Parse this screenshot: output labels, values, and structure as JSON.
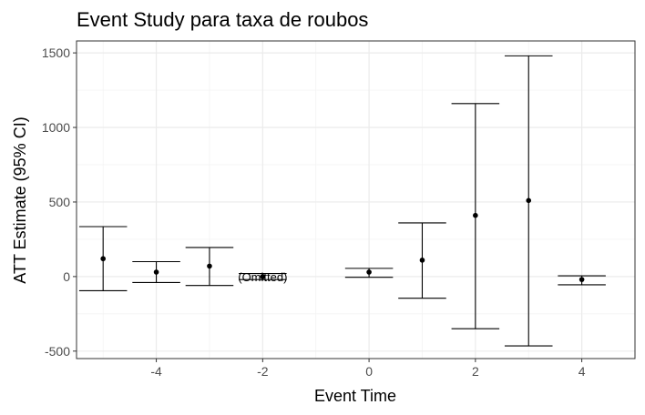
{
  "chart_data": {
    "type": "scatter",
    "title": "Event Study para taxa de roubos",
    "xlabel": "Event Time",
    "ylabel": "ATT Estimate (95% CI)",
    "xlim": [
      -5.5,
      5.0
    ],
    "ylim": [
      -550,
      1580
    ],
    "x_ticks": [
      -4,
      -2,
      0,
      2,
      4
    ],
    "x_tick_labels": [
      "-4",
      "-2",
      "0",
      "2",
      "4"
    ],
    "y_ticks": [
      -500,
      0,
      500,
      1000,
      1500
    ],
    "y_tick_labels": [
      "-500",
      "0",
      "500",
      "1000",
      "1500"
    ],
    "grid": true,
    "series": [
      {
        "points": [
          {
            "x": -5,
            "y": 120,
            "lo": -95,
            "hi": 335
          },
          {
            "x": -4,
            "y": 30,
            "lo": -40,
            "hi": 100
          },
          {
            "x": -3,
            "y": 70,
            "lo": -60,
            "hi": 195
          },
          {
            "x": -2,
            "y": 0,
            "lo": -20,
            "hi": 20
          },
          {
            "x": 0,
            "y": 30,
            "lo": -5,
            "hi": 55
          },
          {
            "x": 1,
            "y": 110,
            "lo": -145,
            "hi": 360
          },
          {
            "x": 2,
            "y": 410,
            "lo": -350,
            "hi": 1160
          },
          {
            "x": 3,
            "y": 510,
            "lo": -465,
            "hi": 1480
          },
          {
            "x": 4,
            "y": -20,
            "lo": -55,
            "hi": 5
          }
        ]
      }
    ],
    "annotations": [
      {
        "x": -2,
        "y": 0,
        "text": "(Omitted)"
      }
    ]
  }
}
